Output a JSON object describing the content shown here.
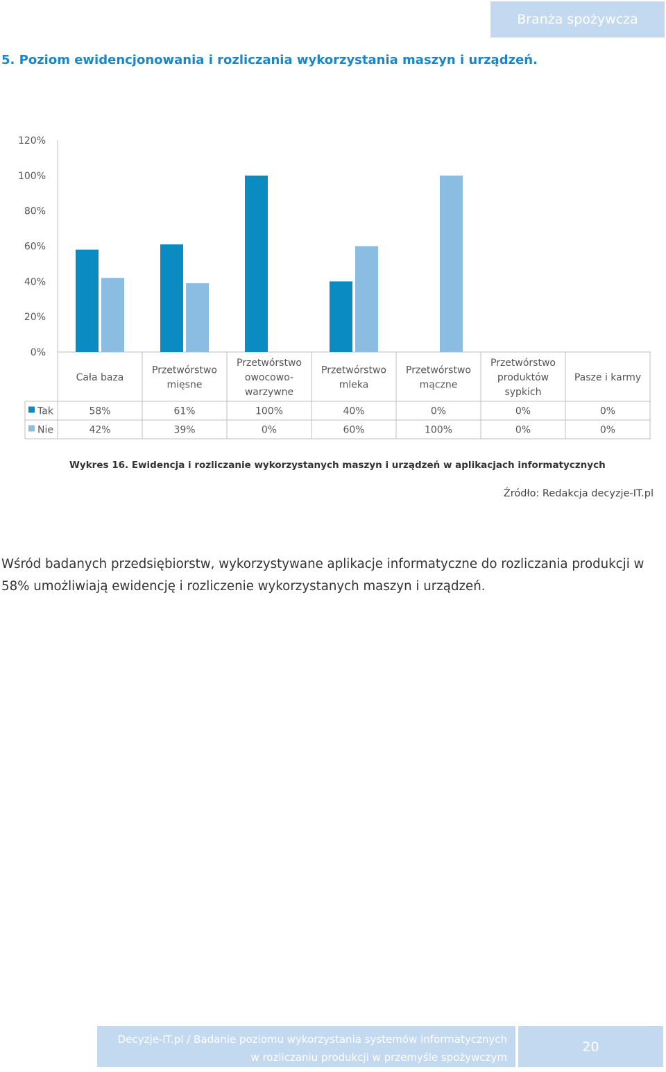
{
  "header": {
    "tag": "Branża spożywcza"
  },
  "section": {
    "title": "5. Poziom ewidencjonowania i rozliczania wykorzystania maszyn i urządzeń."
  },
  "chart_data": {
    "type": "bar",
    "y_ticks": [
      "120%",
      "100%",
      "80%",
      "60%",
      "40%",
      "20%",
      "0%"
    ],
    "ylim": [
      0,
      120
    ],
    "categories": [
      [
        "Cała baza"
      ],
      [
        "Przetwórstwo",
        "mięsne"
      ],
      [
        "Przetwórstwo",
        "owocowo-",
        "warzywne"
      ],
      [
        "Przetwórstwo",
        "mleka"
      ],
      [
        "Przetwórstwo",
        "mączne"
      ],
      [
        "Przetwórstwo",
        "produktów",
        "sypkich"
      ],
      [
        "Pasze i karmy"
      ]
    ],
    "series": [
      {
        "name": "Tak",
        "color": "#0a8cc3",
        "values": [
          58,
          61,
          100,
          40,
          0,
          0,
          0
        ],
        "labels": [
          "58%",
          "61%",
          "100%",
          "40%",
          "0%",
          "0%",
          "0%"
        ]
      },
      {
        "name": "Nie",
        "color": "#8bbde3",
        "values": [
          42,
          39,
          0,
          60,
          100,
          0,
          0
        ],
        "labels": [
          "42%",
          "39%",
          "0%",
          "60%",
          "100%",
          "0%",
          "0%"
        ]
      }
    ]
  },
  "caption": "Wykres 16. Ewidencja i rozliczanie wykorzystanych maszyn i urządzeń  w aplikacjach informatycznych",
  "source": "Źródło: Redakcja decyzje-IT.pl",
  "body_text": "Wśród badanych przedsiębiorstw, wykorzystywane aplikacje informatyczne do rozliczania produkcji w 58% umożliwiają ewidencję i rozliczenie wykorzystanych maszyn i urządzeń.",
  "footer": {
    "line1": "Decyzje-IT.pl / Badanie poziomu wykorzystania systemów informatycznych",
    "line2": "w rozliczaniu produkcji w przemyśle spożywczym",
    "page_number": "20"
  }
}
